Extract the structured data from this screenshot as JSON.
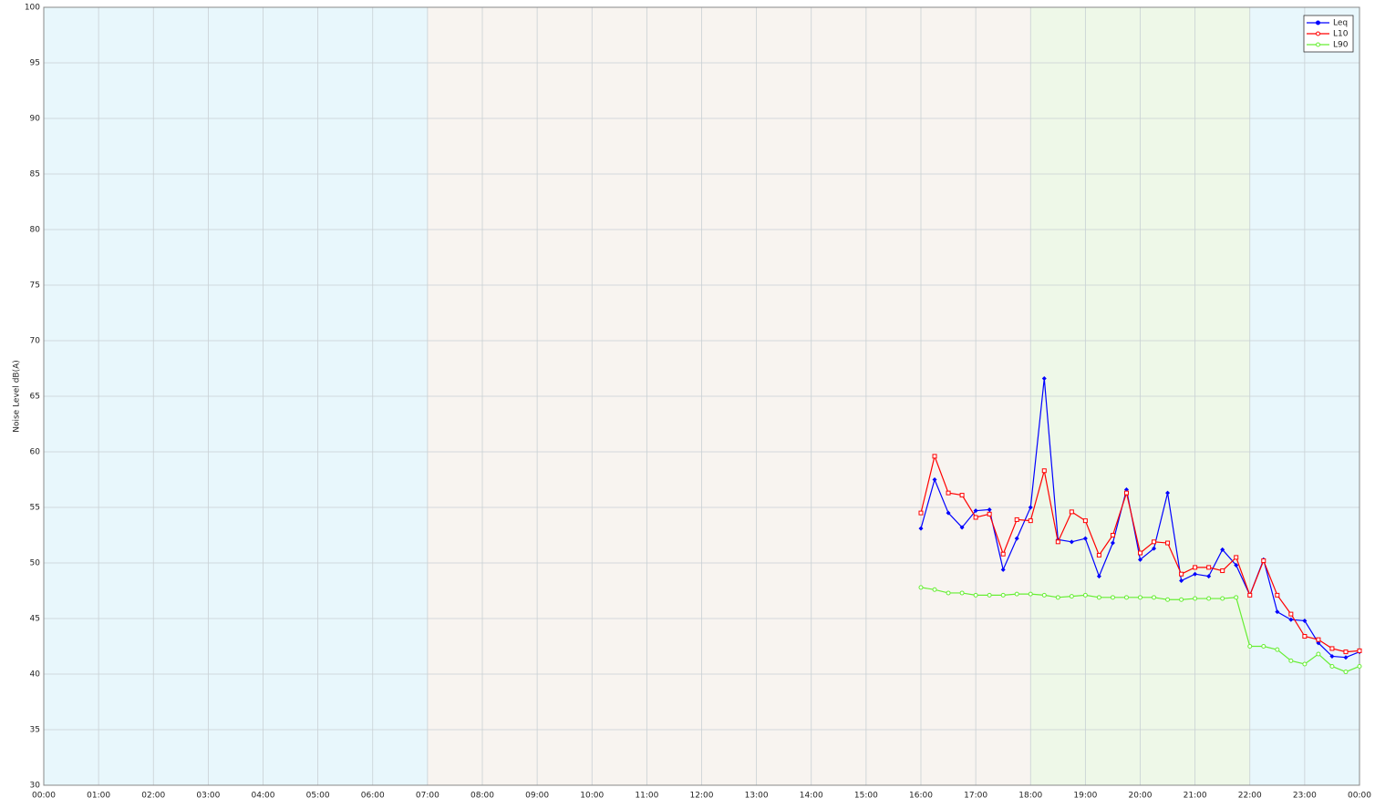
{
  "chart_data": {
    "type": "line",
    "ylabel": "Noise Level dB(A)",
    "xlim": [
      0,
      24
    ],
    "xticks": [
      {
        "value": 0,
        "label": "00:00"
      },
      {
        "value": 1,
        "label": "01:00"
      },
      {
        "value": 2,
        "label": "02:00"
      },
      {
        "value": 3,
        "label": "03:00"
      },
      {
        "value": 4,
        "label": "04:00"
      },
      {
        "value": 5,
        "label": "05:00"
      },
      {
        "value": 6,
        "label": "06:00"
      },
      {
        "value": 7,
        "label": "07:00"
      },
      {
        "value": 8,
        "label": "08:00"
      },
      {
        "value": 9,
        "label": "09:00"
      },
      {
        "value": 10,
        "label": "10:00"
      },
      {
        "value": 11,
        "label": "11:00"
      },
      {
        "value": 12,
        "label": "12:00"
      },
      {
        "value": 13,
        "label": "13:00"
      },
      {
        "value": 14,
        "label": "14:00"
      },
      {
        "value": 15,
        "label": "15:00"
      },
      {
        "value": 16,
        "label": "16:00"
      },
      {
        "value": 17,
        "label": "17:00"
      },
      {
        "value": 18,
        "label": "18:00"
      },
      {
        "value": 19,
        "label": "19:00"
      },
      {
        "value": 20,
        "label": "20:00"
      },
      {
        "value": 21,
        "label": "21:00"
      },
      {
        "value": 22,
        "label": "22:00"
      },
      {
        "value": 23,
        "label": "23:00"
      },
      {
        "value": 24,
        "label": "00:00"
      }
    ],
    "ylim": [
      30,
      100
    ],
    "yticks": [
      30,
      35,
      40,
      45,
      50,
      55,
      60,
      65,
      70,
      75,
      80,
      85,
      90,
      95,
      100
    ],
    "grid": true,
    "legend": "upper right",
    "bands": [
      {
        "start": 0,
        "end": 7,
        "color": "#e8f7fc"
      },
      {
        "start": 7,
        "end": 18,
        "color": "#f8f4f0"
      },
      {
        "start": 18,
        "end": 22,
        "color": "#eef8e8"
      },
      {
        "start": 22,
        "end": 24,
        "color": "#e8f7fc"
      }
    ],
    "x": [
      16,
      16.25,
      16.5,
      16.75,
      17,
      17.25,
      17.5,
      17.75,
      18,
      18.25,
      18.5,
      18.75,
      19,
      19.25,
      19.5,
      19.75,
      20,
      20.25,
      20.5,
      20.75,
      21,
      21.25,
      21.5,
      21.75,
      22,
      22.25,
      22.5,
      22.75,
      23,
      23.25,
      23.5,
      23.75,
      24
    ],
    "series": [
      {
        "name": "Leq",
        "color": "#0000ff",
        "marker": "diamond",
        "values": [
          53.1,
          57.5,
          54.5,
          53.2,
          54.7,
          54.8,
          49.4,
          52.2,
          55.0,
          66.6,
          52.1,
          51.9,
          52.2,
          48.8,
          51.8,
          56.6,
          50.3,
          51.3,
          56.3,
          48.4,
          49.0,
          48.8,
          51.2,
          49.8,
          47.1,
          50.3,
          45.6,
          44.9,
          44.8,
          42.8,
          41.6,
          41.5,
          42.0
        ]
      },
      {
        "name": "L10",
        "color": "#ff0000",
        "marker": "square",
        "values": [
          54.5,
          59.6,
          56.3,
          56.1,
          54.1,
          54.4,
          50.8,
          53.9,
          53.8,
          58.3,
          51.9,
          54.6,
          53.8,
          50.7,
          52.5,
          56.3,
          50.9,
          51.9,
          51.8,
          49.0,
          49.6,
          49.6,
          49.3,
          50.5,
          47.1,
          50.2,
          47.1,
          45.4,
          43.4,
          43.1,
          42.3,
          42.0,
          42.1
        ]
      },
      {
        "name": "L90",
        "color": "#66ee33",
        "marker": "circle",
        "values": [
          47.8,
          47.6,
          47.3,
          47.3,
          47.1,
          47.1,
          47.1,
          47.2,
          47.2,
          47.1,
          46.9,
          47.0,
          47.1,
          46.9,
          46.9,
          46.9,
          46.9,
          46.9,
          46.7,
          46.7,
          46.8,
          46.8,
          46.8,
          46.9,
          42.5,
          42.5,
          42.2,
          41.2,
          40.9,
          41.8,
          40.7,
          40.2,
          40.7
        ]
      }
    ]
  }
}
